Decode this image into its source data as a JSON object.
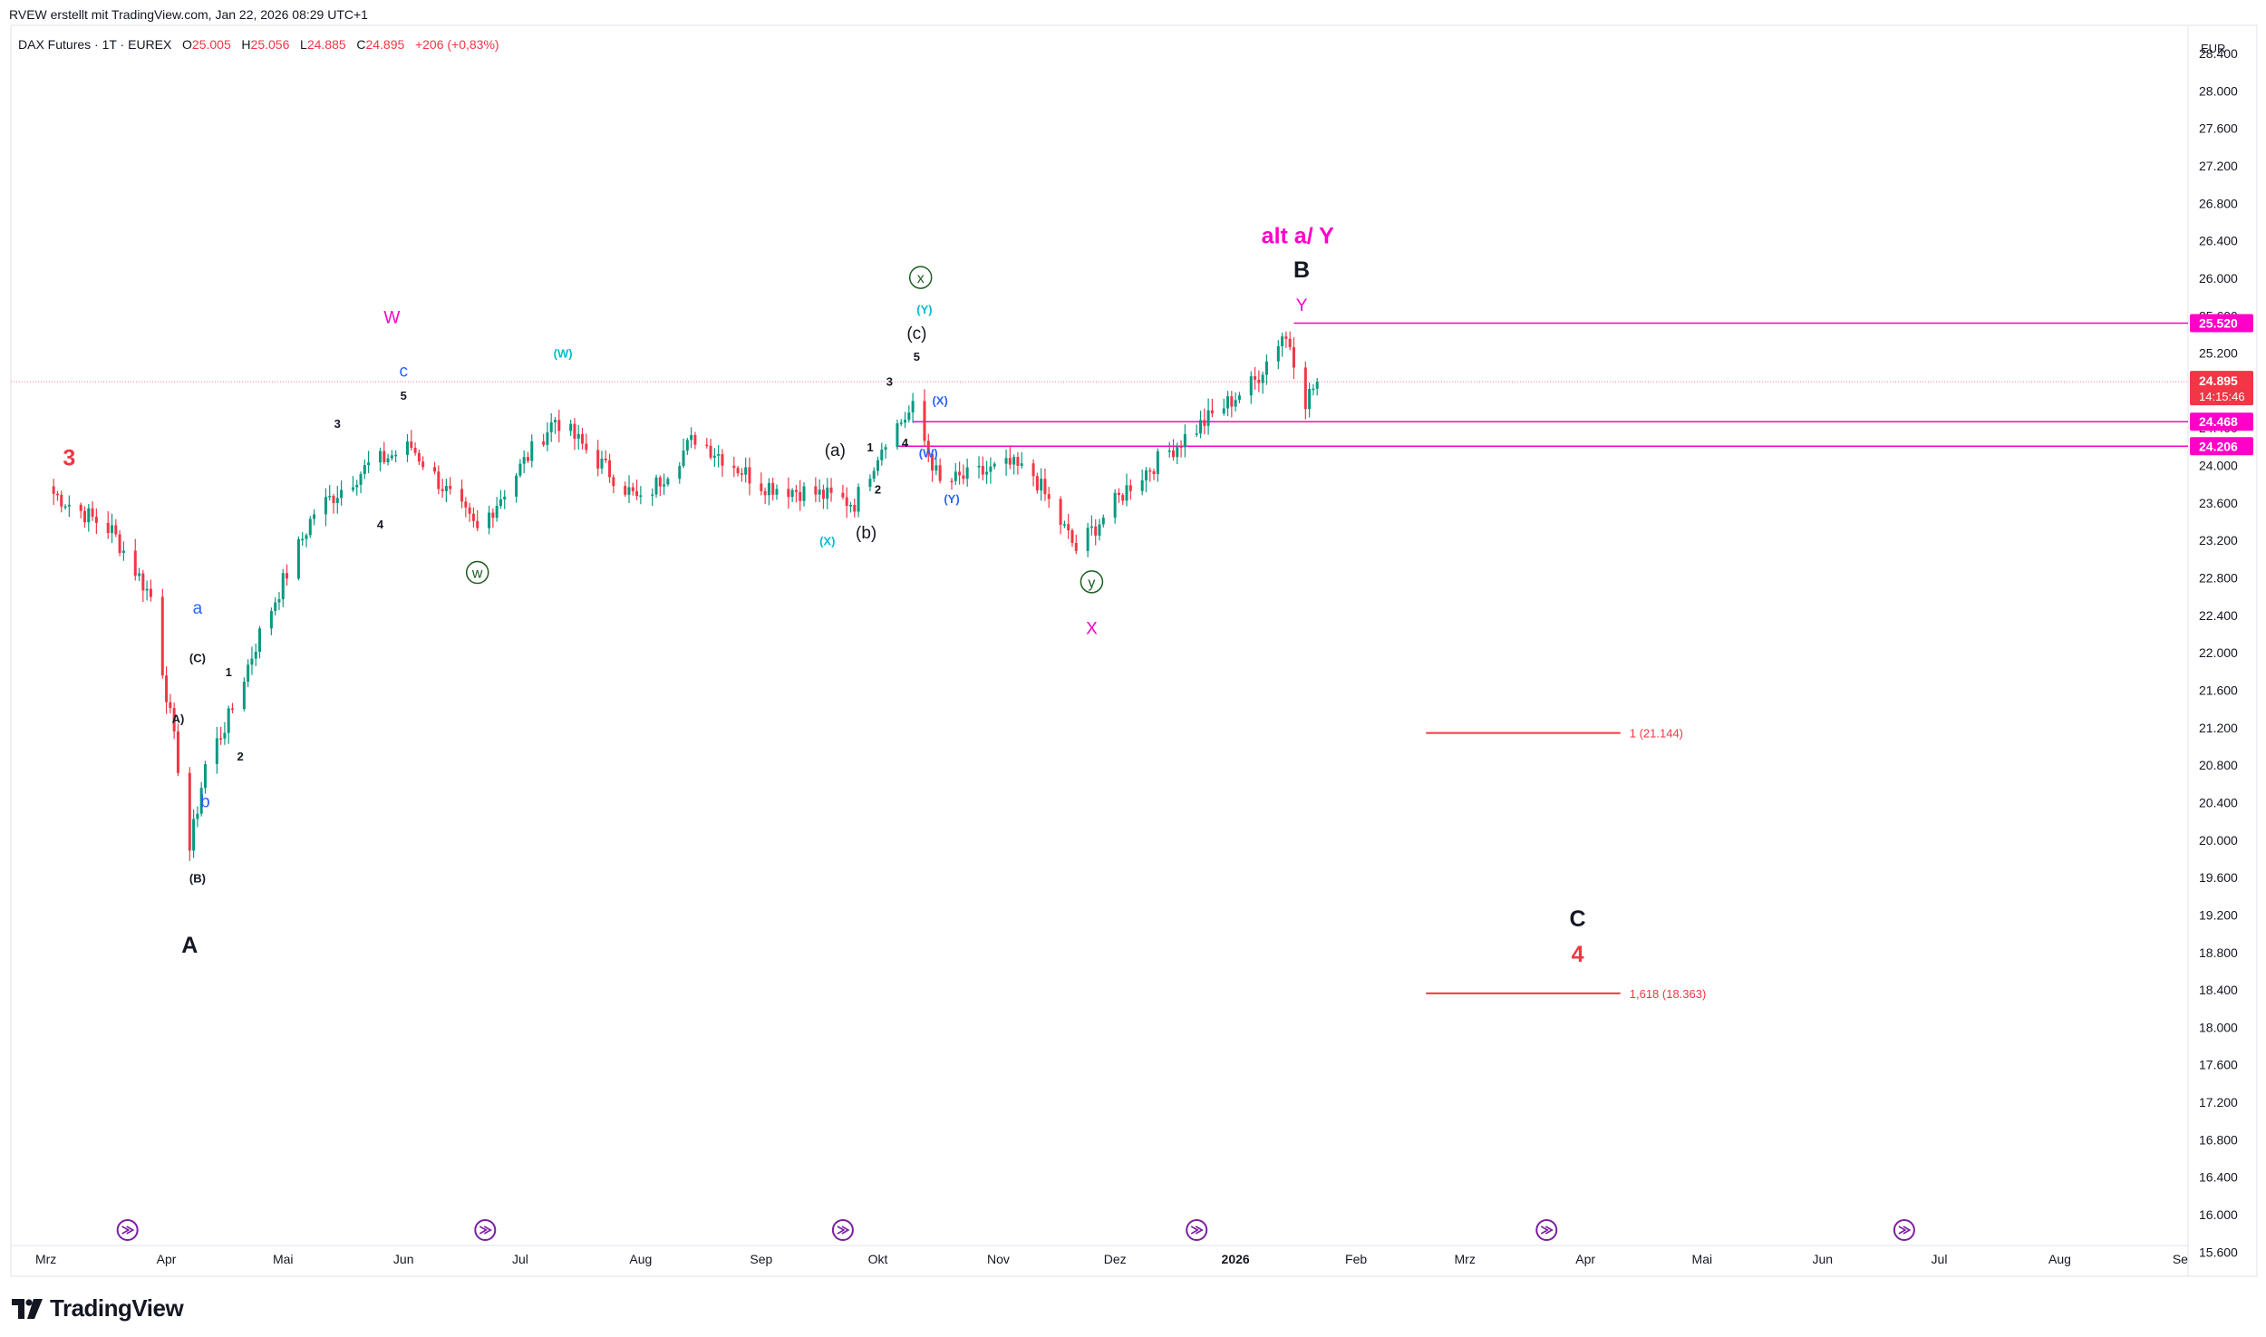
{
  "header": {
    "credit": "RVEW erstellt mit TradingView.com, Jan 22, 2026 08:29 UTC+1"
  },
  "legend": {
    "symbol": "DAX Futures · 1T · EUREX",
    "o_label": "O",
    "o_value": "25.005",
    "h_label": "H",
    "h_value": "25.056",
    "l_label": "L",
    "l_value": "24.885",
    "c_label": "C",
    "c_value": "24.895",
    "change": "+206 (+0,83%)"
  },
  "brand": {
    "name": "TradingView"
  },
  "currency": "EUR",
  "colors": {
    "up": "#089981",
    "down": "#f23645",
    "pink": "#ff00c8",
    "fib": "#f23645",
    "cyan": "#00bcd4",
    "blue": "#2962ff",
    "green_circle": "#1b5e20"
  },
  "chart_data": {
    "type": "candlestick",
    "instrument": "DAX Futures",
    "interval": "1T",
    "y_axis": {
      "ticks": [
        "28.400",
        "28.000",
        "27.600",
        "27.200",
        "26.800",
        "26.400",
        "26.000",
        "25.600",
        "25.200",
        "24.800",
        "24.400",
        "24.000",
        "23.600",
        "23.200",
        "22.800",
        "22.400",
        "22.000",
        "21.600",
        "21.200",
        "20.800",
        "20.400",
        "20.000",
        "19.600",
        "19.200",
        "18.800",
        "18.400",
        "18.000",
        "17.600",
        "17.200",
        "16.800",
        "16.400",
        "16.000",
        "15.600"
      ],
      "range": [
        15400,
        28700
      ]
    },
    "x_axis": {
      "ticks": [
        "Mrz",
        "Apr",
        "Mai",
        "Jun",
        "Jul",
        "Aug",
        "Sep",
        "Okt",
        "Nov",
        "Dez",
        "2026",
        "Feb",
        "Mrz",
        "Apr",
        "Mai",
        "Jun",
        "Jul",
        "Aug",
        "Se"
      ],
      "dates": [
        "2025-03-01",
        "2025-04-01",
        "2025-05-01",
        "2025-06-01",
        "2025-07-01",
        "2025-08-01",
        "2025-09-01",
        "2025-10-01",
        "2025-11-01",
        "2025-12-01",
        "2026-01-01",
        "2026-02-01",
        "2026-03-01",
        "2026-04-01",
        "2026-05-01",
        "2026-06-01",
        "2026-07-01",
        "2026-08-01",
        "2026-09-01"
      ]
    },
    "price_levels": [
      {
        "value": 25520,
        "label": "25.520",
        "style": "pink"
      },
      {
        "value": 24895,
        "label": "24.895",
        "countdown": "14:15:46",
        "style": "current"
      },
      {
        "value": 24468,
        "label": "24.468",
        "style": "pink"
      },
      {
        "value": 24206,
        "label": "24.206",
        "style": "pink"
      }
    ],
    "last_close_line": 24895,
    "fib_targets": [
      {
        "value": 21144,
        "label": "1 (21.144)",
        "from": "2026-02-19",
        "to": "2026-04-10"
      },
      {
        "value": 18363,
        "label": "1,618 (18.363)",
        "from": "2026-02-19",
        "to": "2026-04-10"
      }
    ],
    "event_markers": [
      "2025-03-22",
      "2025-06-22",
      "2025-09-22",
      "2025-12-22",
      "2026-03-22",
      "2026-06-22"
    ],
    "anchors": [
      {
        "date": "2025-03-03",
        "close": 23700
      },
      {
        "date": "2025-03-18",
        "close": 23300
      },
      {
        "date": "2025-03-28",
        "close": 22600
      },
      {
        "date": "2025-04-04",
        "close": 20800
      },
      {
        "date": "2025-04-07",
        "close": 19900
      },
      {
        "date": "2025-04-11",
        "close": 20800
      },
      {
        "date": "2025-04-17",
        "close": 21300
      },
      {
        "date": "2025-04-25",
        "close": 22200
      },
      {
        "date": "2025-05-09",
        "close": 23500
      },
      {
        "date": "2025-05-23",
        "close": 24000
      },
      {
        "date": "2025-06-03",
        "close": 24200
      },
      {
        "date": "2025-06-20",
        "close": 23300
      },
      {
        "date": "2025-07-03",
        "close": 24100
      },
      {
        "date": "2025-07-10",
        "close": 24500
      },
      {
        "date": "2025-08-01",
        "close": 23600
      },
      {
        "date": "2025-08-15",
        "close": 24300
      },
      {
        "date": "2025-09-01",
        "close": 23800
      },
      {
        "date": "2025-09-15",
        "close": 23700
      },
      {
        "date": "2025-09-25",
        "close": 23600
      },
      {
        "date": "2025-10-03",
        "close": 24300
      },
      {
        "date": "2025-10-10",
        "close": 24600
      },
      {
        "date": "2025-10-17",
        "close": 23800
      },
      {
        "date": "2025-11-04",
        "close": 24000
      },
      {
        "date": "2025-11-10",
        "close": 23900
      },
      {
        "date": "2025-11-21",
        "close": 23100
      },
      {
        "date": "2025-12-05",
        "close": 23800
      },
      {
        "date": "2025-12-19",
        "close": 24300
      },
      {
        "date": "2026-01-06",
        "close": 24900
      },
      {
        "date": "2026-01-13",
        "close": 25400
      },
      {
        "date": "2026-01-15",
        "close": 25300
      },
      {
        "date": "2026-01-19",
        "close": 24700
      },
      {
        "date": "2026-01-22",
        "close": 24895
      }
    ],
    "wave_labels": [
      {
        "text": "3",
        "date": "2025-03-07",
        "price": 24000,
        "color": "fib",
        "size": "l"
      },
      {
        "text": "A",
        "date": "2025-04-07",
        "price": 18800,
        "color": "black",
        "size": "l"
      },
      {
        "text": "a",
        "date": "2025-04-09",
        "price": 22420,
        "color": "blue",
        "size": "m"
      },
      {
        "text": "(C)",
        "date": "2025-04-09",
        "price": 21900,
        "color": "black",
        "size": "s"
      },
      {
        "text": "A)",
        "date": "2025-04-04",
        "price": 21250,
        "color": "black",
        "size": "s"
      },
      {
        "text": "b",
        "date": "2025-04-11",
        "price": 20350,
        "color": "blue",
        "size": "m"
      },
      {
        "text": "(B)",
        "date": "2025-04-09",
        "price": 19550,
        "color": "black",
        "size": "s"
      },
      {
        "text": "1",
        "date": "2025-04-17",
        "price": 21750,
        "color": "black",
        "size": "s"
      },
      {
        "text": "2",
        "date": "2025-04-20",
        "price": 20850,
        "color": "black",
        "size": "s"
      },
      {
        "text": "3",
        "date": "2025-05-15",
        "price": 24400,
        "color": "black",
        "size": "s"
      },
      {
        "text": "4",
        "date": "2025-05-26",
        "price": 23330,
        "color": "black",
        "size": "s"
      },
      {
        "text": "W",
        "date": "2025-05-29",
        "price": 25520,
        "color": "pink",
        "size": "m"
      },
      {
        "text": "c",
        "date": "2025-06-01",
        "price": 24950,
        "color": "blue",
        "size": "m"
      },
      {
        "text": "5",
        "date": "2025-06-01",
        "price": 24700,
        "color": "black",
        "size": "s"
      },
      {
        "text": "w",
        "date": "2025-06-20",
        "price": 22800,
        "color": "green_circle",
        "size": "c"
      },
      {
        "text": "(W)",
        "date": "2025-07-12",
        "price": 25150,
        "color": "cyan",
        "size": "s"
      },
      {
        "text": "(a)",
        "date": "2025-09-20",
        "price": 24100,
        "color": "black",
        "size": "m"
      },
      {
        "text": "(b)",
        "date": "2025-09-28",
        "price": 23220,
        "color": "black",
        "size": "m"
      },
      {
        "text": "(X)",
        "date": "2025-09-18",
        "price": 23150,
        "color": "cyan",
        "size": "s"
      },
      {
        "text": "1",
        "date": "2025-09-29",
        "price": 24150,
        "color": "black",
        "size": "s"
      },
      {
        "text": "2",
        "date": "2025-10-01",
        "price": 23700,
        "color": "black",
        "size": "s"
      },
      {
        "text": "3",
        "date": "2025-10-04",
        "price": 24850,
        "color": "black",
        "size": "s"
      },
      {
        "text": "4",
        "date": "2025-10-08",
        "price": 24200,
        "color": "black",
        "size": "s"
      },
      {
        "text": "5",
        "date": "2025-10-11",
        "price": 25120,
        "color": "black",
        "size": "s"
      },
      {
        "text": "(c)",
        "date": "2025-10-11",
        "price": 25350,
        "color": "black",
        "size": "m"
      },
      {
        "text": "(Y)",
        "date": "2025-10-13",
        "price": 25620,
        "color": "cyan",
        "size": "s"
      },
      {
        "text": "x",
        "date": "2025-10-12",
        "price": 25950,
        "color": "green_circle",
        "size": "c"
      },
      {
        "text": "(X)",
        "date": "2025-10-17",
        "price": 24650,
        "color": "blue",
        "size": "s"
      },
      {
        "text": "(W)",
        "date": "2025-10-14",
        "price": 24090,
        "color": "blue",
        "size": "s"
      },
      {
        "text": "(Y)",
        "date": "2025-10-20",
        "price": 23600,
        "color": "blue",
        "size": "s"
      },
      {
        "text": "y",
        "date": "2025-11-25",
        "price": 22700,
        "color": "green_circle",
        "size": "c"
      },
      {
        "text": "X",
        "date": "2025-11-25",
        "price": 22200,
        "color": "pink",
        "size": "m"
      },
      {
        "text": "alt a/ Y",
        "date": "2026-01-17",
        "price": 26370,
        "color": "pink",
        "size": "l"
      },
      {
        "text": "B",
        "date": "2026-01-18",
        "price": 26010,
        "color": "black",
        "size": "l"
      },
      {
        "text": "Y",
        "date": "2026-01-18",
        "price": 25650,
        "color": "pink",
        "size": "m"
      },
      {
        "text": "C",
        "date": "2026-03-30",
        "price": 19080,
        "color": "black",
        "size": "l"
      },
      {
        "text": "4",
        "date": "2026-03-30",
        "price": 18700,
        "color": "fib",
        "size": "l"
      }
    ]
  }
}
